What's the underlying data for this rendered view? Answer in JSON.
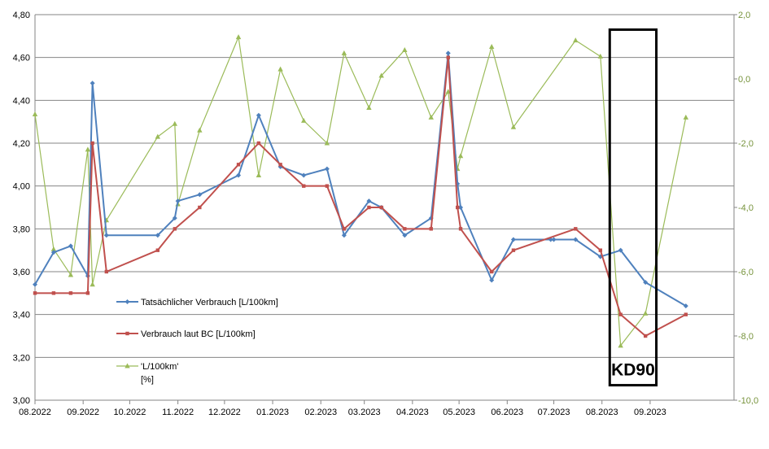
{
  "chart_data": {
    "type": "line",
    "grid": "horizontal",
    "legend_position": "bottom-left inside plot",
    "x_axis": {
      "type": "date",
      "range": [
        "2022-08-01",
        "2023-10-25"
      ],
      "ticks": [
        {
          "date": "2022-08-01",
          "label": "08.2022"
        },
        {
          "date": "2022-09-01",
          "label": "09.2022"
        },
        {
          "date": "2022-10-01",
          "label": "10.2022"
        },
        {
          "date": "2022-11-01",
          "label": "11.2022"
        },
        {
          "date": "2022-12-01",
          "label": "12.2022"
        },
        {
          "date": "2023-01-01",
          "label": "01.2023"
        },
        {
          "date": "2023-02-01",
          "label": "02.2023"
        },
        {
          "date": "2023-03-01",
          "label": "03.2023"
        },
        {
          "date": "2023-04-01",
          "label": "04.2023"
        },
        {
          "date": "2023-05-01",
          "label": "05.2023"
        },
        {
          "date": "2023-06-01",
          "label": "06.2023"
        },
        {
          "date": "2023-07-01",
          "label": "07.2023"
        },
        {
          "date": "2023-08-01",
          "label": "08.2023"
        },
        {
          "date": "2023-09-01",
          "label": "09.2023"
        }
      ]
    },
    "y_axis_left": {
      "range": [
        3.0,
        4.8
      ],
      "ticks": [
        "3,00",
        "3,20",
        "3,40",
        "3,60",
        "3,80",
        "4,00",
        "4,20",
        "4,40",
        "4,60",
        "4,80"
      ],
      "color": "#000000"
    },
    "y_axis_right": {
      "range": [
        -10,
        2
      ],
      "ticks": [
        "-10,0",
        "-8,0",
        "-6,0",
        "-4,0",
        "-2,0",
        "0,0",
        "2,0"
      ],
      "color": "#77933c"
    },
    "series": [
      {
        "name": "Tatsächlicher Verbrauch [L/100km]",
        "axis": "left",
        "color": "#4f81bd",
        "marker": "diamond",
        "points": [
          [
            "2022-08-01",
            3.54
          ],
          [
            "2022-08-13",
            3.69
          ],
          [
            "2022-08-24",
            3.72
          ],
          [
            "2022-09-04",
            3.58
          ],
          [
            "2022-09-07",
            4.48
          ],
          [
            "2022-09-16",
            3.77
          ],
          [
            "2022-10-19",
            3.77
          ],
          [
            "2022-10-30",
            3.85
          ],
          [
            "2022-11-01",
            3.93
          ],
          [
            "2022-11-15",
            3.96
          ],
          [
            "2022-12-10",
            4.05
          ],
          [
            "2022-12-23",
            4.33
          ],
          [
            "2023-01-06",
            4.09
          ],
          [
            "2023-01-21",
            4.05
          ],
          [
            "2023-02-05",
            4.08
          ],
          [
            "2023-02-16",
            3.77
          ],
          [
            "2023-03-04",
            3.93
          ],
          [
            "2023-03-12",
            3.9
          ],
          [
            "2023-03-27",
            3.77
          ],
          [
            "2023-04-13",
            3.85
          ],
          [
            "2023-04-24",
            4.62
          ],
          [
            "2023-04-30",
            4.01
          ],
          [
            "2023-05-02",
            3.9
          ],
          [
            "2023-05-22",
            3.56
          ],
          [
            "2023-06-05",
            3.75
          ],
          [
            "2023-06-29",
            3.75
          ],
          [
            "2023-07-01",
            3.75
          ],
          [
            "2023-07-15",
            3.75
          ],
          [
            "2023-07-31",
            3.67
          ],
          [
            "2023-08-13",
            3.7
          ],
          [
            "2023-08-29",
            3.55
          ],
          [
            "2023-09-24",
            3.44
          ]
        ]
      },
      {
        "name": "Verbrauch laut BC [L/100km]",
        "axis": "left",
        "color": "#c0504d",
        "marker": "square",
        "points": [
          [
            "2022-08-01",
            3.5
          ],
          [
            "2022-08-13",
            3.5
          ],
          [
            "2022-08-24",
            3.5
          ],
          [
            "2022-09-04",
            3.5
          ],
          [
            "2022-09-07",
            4.2
          ],
          [
            "2022-09-16",
            3.6
          ],
          [
            "2022-10-19",
            3.7
          ],
          [
            "2022-10-30",
            3.8
          ],
          [
            "2022-11-15",
            3.9
          ],
          [
            "2022-12-10",
            4.1
          ],
          [
            "2022-12-23",
            4.2
          ],
          [
            "2023-01-06",
            4.1
          ],
          [
            "2023-01-21",
            4.0
          ],
          [
            "2023-02-05",
            4.0
          ],
          [
            "2023-02-16",
            3.8
          ],
          [
            "2023-03-04",
            3.9
          ],
          [
            "2023-03-12",
            3.9
          ],
          [
            "2023-03-27",
            3.8
          ],
          [
            "2023-04-13",
            3.8
          ],
          [
            "2023-04-24",
            4.6
          ],
          [
            "2023-04-30",
            3.9
          ],
          [
            "2023-05-02",
            3.8
          ],
          [
            "2023-05-22",
            3.6
          ],
          [
            "2023-06-05",
            3.7
          ],
          [
            "2023-07-15",
            3.8
          ],
          [
            "2023-07-31",
            3.7
          ],
          [
            "2023-08-13",
            3.4
          ],
          [
            "2023-08-29",
            3.3
          ],
          [
            "2023-09-24",
            3.4
          ]
        ]
      },
      {
        "name": "'L/100km'\n[%]",
        "axis": "right",
        "color": "#9bbb59",
        "marker": "triangle",
        "points": [
          [
            "2022-08-01",
            -1.1
          ],
          [
            "2022-08-13",
            -5.3
          ],
          [
            "2022-08-24",
            -6.1
          ],
          [
            "2022-09-04",
            -2.2
          ],
          [
            "2022-09-07",
            -6.4
          ],
          [
            "2022-09-16",
            -4.4
          ],
          [
            "2022-10-19",
            -1.8
          ],
          [
            "2022-10-30",
            -1.4
          ],
          [
            "2022-11-01",
            -3.9
          ],
          [
            "2022-11-15",
            -1.6
          ],
          [
            "2022-12-10",
            1.3
          ],
          [
            "2022-12-23",
            -3.0
          ],
          [
            "2023-01-06",
            0.3
          ],
          [
            "2023-01-21",
            -1.3
          ],
          [
            "2023-02-05",
            -2.0
          ],
          [
            "2023-02-16",
            0.8
          ],
          [
            "2023-03-04",
            -0.9
          ],
          [
            "2023-03-12",
            0.1
          ],
          [
            "2023-03-27",
            0.9
          ],
          [
            "2023-04-13",
            -1.2
          ],
          [
            "2023-04-24",
            -0.4
          ],
          [
            "2023-04-30",
            -2.8
          ],
          [
            "2023-05-02",
            -2.4
          ],
          [
            "2023-05-22",
            1.0
          ],
          [
            "2023-06-05",
            -1.5
          ],
          [
            "2023-07-15",
            1.2
          ],
          [
            "2023-07-31",
            0.7
          ],
          [
            "2023-08-13",
            -8.3
          ],
          [
            "2023-08-29",
            -7.3
          ],
          [
            "2023-09-24",
            -1.2
          ]
        ]
      }
    ],
    "annotation": {
      "text": "KD90",
      "from": "2023-08-06",
      "to": "2023-09-05",
      "y_top": 4.73,
      "y_bottom": 3.07
    }
  }
}
